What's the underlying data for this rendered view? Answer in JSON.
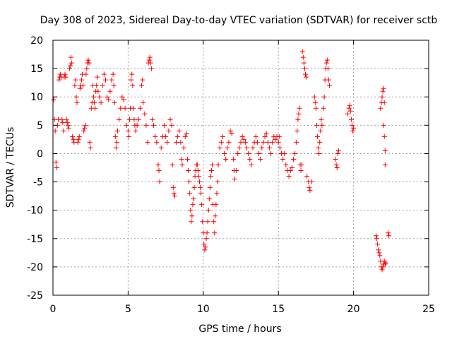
{
  "chart_data": {
    "type": "scatter",
    "title": "Day 308 of 2023, Sidereal Day-to-day VTEC variation (SDTVAR) for receiver sctb",
    "xlabel": "GPS time / hours",
    "ylabel": "SDTVAR / TECUs",
    "xlim": [
      0,
      25
    ],
    "ylim": [
      -25,
      20
    ],
    "xticks": [
      0,
      5,
      10,
      15,
      20,
      25
    ],
    "yticks": [
      -25,
      -20,
      -15,
      -10,
      -5,
      0,
      5,
      10,
      15,
      20
    ],
    "grid": true,
    "marker": "+",
    "color": "#ff0000",
    "series": [
      {
        "name": "SDTVAR",
        "points": [
          [
            0.05,
            9.5
          ],
          [
            0.1,
            6
          ],
          [
            0.15,
            4
          ],
          [
            0.2,
            -1.5
          ],
          [
            0.25,
            -2.5
          ],
          [
            0.3,
            5
          ],
          [
            0.35,
            6
          ],
          [
            0.4,
            13
          ],
          [
            0.45,
            13.5
          ],
          [
            0.5,
            14
          ],
          [
            0.55,
            13.5
          ],
          [
            0.6,
            6
          ],
          [
            0.65,
            5.5
          ],
          [
            0.7,
            4
          ],
          [
            0.75,
            13.5
          ],
          [
            0.8,
            14
          ],
          [
            0.85,
            13.5
          ],
          [
            0.9,
            6
          ],
          [
            0.95,
            5.5
          ],
          [
            1.0,
            5
          ],
          [
            1.05,
            4.5
          ],
          [
            1.1,
            15
          ],
          [
            1.15,
            15.5
          ],
          [
            1.2,
            17
          ],
          [
            1.25,
            16
          ],
          [
            1.3,
            3
          ],
          [
            1.35,
            2.5
          ],
          [
            1.4,
            2
          ],
          [
            1.45,
            12
          ],
          [
            1.5,
            13
          ],
          [
            1.55,
            10
          ],
          [
            1.6,
            9
          ],
          [
            1.65,
            2
          ],
          [
            1.7,
            2.5
          ],
          [
            1.75,
            3
          ],
          [
            1.8,
            11.5
          ],
          [
            1.85,
            12
          ],
          [
            1.9,
            13
          ],
          [
            1.95,
            14
          ],
          [
            2.0,
            12
          ],
          [
            2.05,
            4
          ],
          [
            2.1,
            4.5
          ],
          [
            2.15,
            5
          ],
          [
            2.2,
            14
          ],
          [
            2.25,
            15
          ],
          [
            2.3,
            16
          ],
          [
            2.35,
            16.5
          ],
          [
            2.4,
            16
          ],
          [
            2.45,
            2
          ],
          [
            2.5,
            1
          ],
          [
            2.55,
            8
          ],
          [
            2.6,
            9
          ],
          [
            2.65,
            12
          ],
          [
            2.7,
            10
          ],
          [
            2.75,
            9
          ],
          [
            2.8,
            8
          ],
          [
            2.85,
            11
          ],
          [
            2.9,
            12
          ],
          [
            2.95,
            13.5
          ],
          [
            3.0,
            11
          ],
          [
            3.1,
            10
          ],
          [
            3.2,
            9
          ],
          [
            3.3,
            12
          ],
          [
            3.4,
            14
          ],
          [
            3.5,
            13
          ],
          [
            3.6,
            10
          ],
          [
            3.7,
            9.5
          ],
          [
            3.8,
            11
          ],
          [
            3.9,
            13
          ],
          [
            4.0,
            14
          ],
          [
            4.05,
            12
          ],
          [
            4.1,
            9
          ],
          [
            4.15,
            3
          ],
          [
            4.2,
            1
          ],
          [
            4.25,
            2
          ],
          [
            4.3,
            4
          ],
          [
            4.4,
            6
          ],
          [
            4.5,
            8
          ],
          [
            4.6,
            10
          ],
          [
            4.7,
            9.5
          ],
          [
            4.8,
            8
          ],
          [
            4.9,
            5
          ],
          [
            5.0,
            4
          ],
          [
            5.05,
            3
          ],
          [
            5.1,
            6
          ],
          [
            5.15,
            8
          ],
          [
            5.2,
            13
          ],
          [
            5.25,
            14
          ],
          [
            5.3,
            12
          ],
          [
            5.35,
            8
          ],
          [
            5.4,
            6
          ],
          [
            5.45,
            5
          ],
          [
            5.5,
            4
          ],
          [
            5.6,
            5
          ],
          [
            5.7,
            6
          ],
          [
            5.8,
            8
          ],
          [
            5.9,
            12
          ],
          [
            5.95,
            13
          ],
          [
            6.0,
            9
          ],
          [
            6.1,
            7
          ],
          [
            6.2,
            5
          ],
          [
            6.3,
            2
          ],
          [
            6.35,
            16
          ],
          [
            6.4,
            16.5
          ],
          [
            6.45,
            17
          ],
          [
            6.5,
            16
          ],
          [
            6.55,
            15
          ],
          [
            6.6,
            6
          ],
          [
            6.7,
            5
          ],
          [
            6.8,
            3
          ],
          [
            6.9,
            2
          ],
          [
            7.0,
            -2
          ],
          [
            7.05,
            -3
          ],
          [
            7.1,
            -5
          ],
          [
            7.2,
            1
          ],
          [
            7.3,
            3
          ],
          [
            7.4,
            5
          ],
          [
            7.5,
            3
          ],
          [
            7.6,
            2
          ],
          [
            7.7,
            4
          ],
          [
            7.8,
            6
          ],
          [
            7.9,
            5
          ],
          [
            7.95,
            -2
          ],
          [
            8.0,
            -6
          ],
          [
            8.05,
            -7
          ],
          [
            8.1,
            -7.5
          ],
          [
            8.2,
            2
          ],
          [
            8.3,
            3
          ],
          [
            8.4,
            4
          ],
          [
            8.5,
            2
          ],
          [
            8.55,
            -1
          ],
          [
            8.6,
            -2
          ],
          [
            8.7,
            1
          ],
          [
            8.8,
            3
          ],
          [
            8.9,
            3.5
          ],
          [
            8.95,
            -1
          ],
          [
            9.0,
            -3
          ],
          [
            9.05,
            -5
          ],
          [
            9.1,
            -7
          ],
          [
            9.15,
            -10
          ],
          [
            9.2,
            -12
          ],
          [
            9.25,
            -11
          ],
          [
            9.3,
            -9
          ],
          [
            9.35,
            -8
          ],
          [
            9.4,
            -6
          ],
          [
            9.45,
            -4
          ],
          [
            9.5,
            -3
          ],
          [
            9.55,
            -2
          ],
          [
            9.6,
            -2
          ],
          [
            9.65,
            -3
          ],
          [
            9.7,
            -4
          ],
          [
            9.75,
            -5
          ],
          [
            9.8,
            -6
          ],
          [
            9.85,
            -7
          ],
          [
            9.9,
            -9
          ],
          [
            9.95,
            -12
          ],
          [
            10.0,
            -14
          ],
          [
            10.05,
            -16
          ],
          [
            10.1,
            -17
          ],
          [
            10.15,
            -16.5
          ],
          [
            10.2,
            -15
          ],
          [
            10.25,
            -14
          ],
          [
            10.3,
            -12
          ],
          [
            10.35,
            -10
          ],
          [
            10.4,
            -8
          ],
          [
            10.45,
            -6
          ],
          [
            10.5,
            -4
          ],
          [
            10.55,
            -3
          ],
          [
            10.6,
            -2
          ],
          [
            10.65,
            -9
          ],
          [
            10.7,
            -12
          ],
          [
            10.75,
            -14
          ],
          [
            10.8,
            -11
          ],
          [
            10.85,
            -9
          ],
          [
            10.9,
            -7
          ],
          [
            10.95,
            -5
          ],
          [
            11.0,
            -2
          ],
          [
            11.1,
            1
          ],
          [
            11.2,
            2
          ],
          [
            11.3,
            3
          ],
          [
            11.4,
            0
          ],
          [
            11.5,
            -1
          ],
          [
            11.6,
            1
          ],
          [
            11.7,
            2
          ],
          [
            11.8,
            4
          ],
          [
            11.9,
            3.5
          ],
          [
            12.0,
            -1
          ],
          [
            12.05,
            -3
          ],
          [
            12.1,
            -4.5
          ],
          [
            12.2,
            -3
          ],
          [
            12.3,
            0
          ],
          [
            12.4,
            1
          ],
          [
            12.5,
            2
          ],
          [
            12.6,
            3
          ],
          [
            12.7,
            2.5
          ],
          [
            12.8,
            2
          ],
          [
            12.9,
            1
          ],
          [
            13.0,
            0
          ],
          [
            13.1,
            -1
          ],
          [
            13.2,
            -2
          ],
          [
            13.3,
            1
          ],
          [
            13.4,
            2
          ],
          [
            13.5,
            3
          ],
          [
            13.6,
            2
          ],
          [
            13.7,
            0
          ],
          [
            13.8,
            -1
          ],
          [
            13.9,
            1
          ],
          [
            14.0,
            2
          ],
          [
            14.1,
            3
          ],
          [
            14.2,
            3.5
          ],
          [
            14.3,
            2
          ],
          [
            14.4,
            1
          ],
          [
            14.5,
            0
          ],
          [
            14.6,
            2
          ],
          [
            14.7,
            3
          ],
          [
            14.8,
            2.5
          ],
          [
            14.9,
            3
          ],
          [
            15.0,
            2
          ],
          [
            15.05,
            3
          ],
          [
            15.1,
            1
          ],
          [
            15.2,
            0
          ],
          [
            15.3,
            -1
          ],
          [
            15.4,
            0
          ],
          [
            15.5,
            -2
          ],
          [
            15.6,
            -3
          ],
          [
            15.7,
            -4
          ],
          [
            15.8,
            -3
          ],
          [
            15.9,
            -2.5
          ],
          [
            16.0,
            -1
          ],
          [
            16.1,
            0
          ],
          [
            16.2,
            2
          ],
          [
            16.25,
            4
          ],
          [
            16.3,
            6
          ],
          [
            16.35,
            7
          ],
          [
            16.4,
            8
          ],
          [
            16.45,
            -2
          ],
          [
            16.5,
            -3
          ],
          [
            16.55,
            -2
          ],
          [
            16.6,
            18
          ],
          [
            16.65,
            17
          ],
          [
            16.7,
            16
          ],
          [
            16.75,
            15
          ],
          [
            16.8,
            14
          ],
          [
            16.85,
            13.5
          ],
          [
            16.9,
            -4
          ],
          [
            17.0,
            -5
          ],
          [
            17.05,
            -6
          ],
          [
            17.1,
            -6.5
          ],
          [
            17.2,
            -5
          ],
          [
            17.4,
            10
          ],
          [
            17.45,
            9
          ],
          [
            17.5,
            8
          ],
          [
            17.55,
            5
          ],
          [
            17.6,
            3
          ],
          [
            17.65,
            1
          ],
          [
            17.7,
            0
          ],
          [
            17.75,
            2
          ],
          [
            17.8,
            4
          ],
          [
            17.85,
            6
          ],
          [
            17.9,
            5
          ],
          [
            18.0,
            8
          ],
          [
            18.05,
            10
          ],
          [
            18.1,
            13
          ],
          [
            18.15,
            15
          ],
          [
            18.2,
            16
          ],
          [
            18.25,
            16.5
          ],
          [
            18.3,
            15
          ],
          [
            18.35,
            13
          ],
          [
            18.4,
            12
          ],
          [
            18.8,
            -1
          ],
          [
            18.85,
            -2
          ],
          [
            18.9,
            -2.5
          ],
          [
            18.95,
            0
          ],
          [
            19.0,
            0.5
          ],
          [
            19.6,
            7
          ],
          [
            19.7,
            8
          ],
          [
            19.75,
            8.5
          ],
          [
            19.8,
            7.5
          ],
          [
            19.85,
            6
          ],
          [
            19.9,
            5
          ],
          [
            19.95,
            4
          ],
          [
            20.0,
            4.5
          ],
          [
            21.5,
            -14.5
          ],
          [
            21.55,
            -15
          ],
          [
            21.6,
            -16
          ],
          [
            21.65,
            -17
          ],
          [
            21.7,
            -17.5
          ],
          [
            21.75,
            -18
          ],
          [
            21.8,
            -19
          ],
          [
            21.85,
            -20
          ],
          [
            21.9,
            -20.5
          ],
          [
            21.95,
            -20
          ],
          [
            22.0,
            -19.5
          ],
          [
            22.05,
            -19
          ],
          [
            22.1,
            -19.5
          ],
          [
            22.15,
            -19.3
          ],
          [
            21.8,
            8
          ],
          [
            21.85,
            9
          ],
          [
            21.9,
            10
          ],
          [
            21.95,
            11
          ],
          [
            22.0,
            11.5
          ],
          [
            22.05,
            9
          ],
          [
            22.0,
            5
          ],
          [
            22.05,
            3
          ],
          [
            22.1,
            0.5
          ],
          [
            22.1,
            -2
          ],
          [
            22.3,
            -14
          ],
          [
            22.35,
            -14.5
          ]
        ]
      }
    ]
  }
}
